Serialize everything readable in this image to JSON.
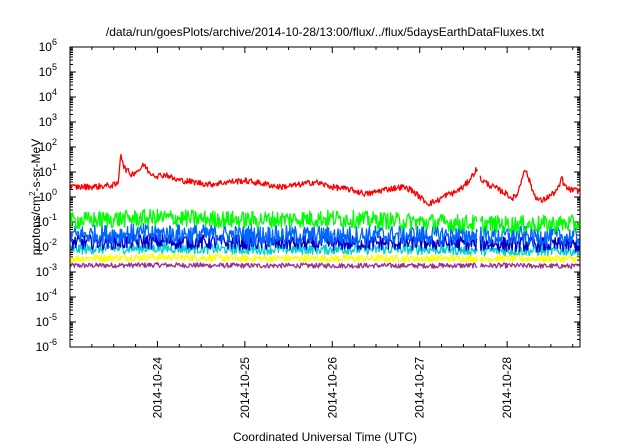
{
  "chart_data": {
    "type": "line",
    "title": "/data/run/goesPlots/archive/2014-10-28/13:00/flux/../flux/5daysEarthDataFluxes.txt",
    "xlabel": "Coordinated Universal Time (UTC)",
    "ylabel": {
      "base": "protons/cm",
      "sup": "2",
      "rest": "-s-sr-MeV"
    },
    "x_range": [
      "2014-10-23 00:00",
      "2014-10-28 14:00"
    ],
    "y_scale": "log",
    "ylim": [
      1e-06,
      1000000.0
    ],
    "grid": false,
    "legend": "none",
    "y_ticks": [
      {
        "v": -6,
        "base": "10",
        "exp": "-6"
      },
      {
        "v": -5,
        "base": "10",
        "exp": "-5"
      },
      {
        "v": -4,
        "base": "10",
        "exp": "-4"
      },
      {
        "v": -3,
        "base": "10",
        "exp": "-3"
      },
      {
        "v": -2,
        "base": "10",
        "exp": "-2"
      },
      {
        "v": -1,
        "base": "10",
        "exp": "-1"
      },
      {
        "v": 0,
        "base": "10",
        "exp": "0"
      },
      {
        "v": 1,
        "base": "10",
        "exp": "1"
      },
      {
        "v": 2,
        "base": "10",
        "exp": "2"
      },
      {
        "v": 3,
        "base": "10",
        "exp": "3"
      },
      {
        "v": 4,
        "base": "10",
        "exp": "4"
      },
      {
        "v": 5,
        "base": "10",
        "exp": "5"
      },
      {
        "v": 6,
        "base": "10",
        "exp": "6"
      }
    ],
    "x_ticks": [
      {
        "t": 1,
        "label": "2014-10-24"
      },
      {
        "t": 2,
        "label": "2014-10-25"
      },
      {
        "t": 3,
        "label": "2014-10-26"
      },
      {
        "t": 4,
        "label": "2014-10-27"
      },
      {
        "t": 5,
        "label": "2014-10-28"
      }
    ],
    "data_gap_days": [
      4.66,
      4.69
    ],
    "series": [
      {
        "color": "#ff0000",
        "noise": 0.12,
        "points": [
          [
            0.0,
            2.5
          ],
          [
            0.3,
            2.6
          ],
          [
            0.5,
            3.0
          ],
          [
            0.55,
            3.2
          ],
          [
            0.58,
            60
          ],
          [
            0.62,
            15
          ],
          [
            0.7,
            8
          ],
          [
            0.8,
            13
          ],
          [
            0.85,
            20
          ],
          [
            0.9,
            10
          ],
          [
            1.0,
            7
          ],
          [
            1.1,
            8
          ],
          [
            1.2,
            5
          ],
          [
            1.4,
            4
          ],
          [
            1.6,
            3.2
          ],
          [
            1.8,
            4
          ],
          [
            2.0,
            4.5
          ],
          [
            2.2,
            3.5
          ],
          [
            2.4,
            2.5
          ],
          [
            2.6,
            3
          ],
          [
            2.8,
            4
          ],
          [
            3.0,
            2.5
          ],
          [
            3.2,
            2
          ],
          [
            3.4,
            1.3
          ],
          [
            3.6,
            2
          ],
          [
            3.8,
            2.5
          ],
          [
            3.9,
            2
          ],
          [
            4.0,
            1
          ],
          [
            4.1,
            0.55
          ],
          [
            4.2,
            0.7
          ],
          [
            4.3,
            1.2
          ],
          [
            4.4,
            1.5
          ],
          [
            4.45,
            2
          ],
          [
            4.5,
            2.5
          ],
          [
            4.55,
            4
          ],
          [
            4.6,
            7
          ],
          [
            4.65,
            13
          ],
          [
            4.7,
            5
          ],
          [
            4.8,
            3
          ],
          [
            4.9,
            2
          ],
          [
            5.0,
            1.3
          ],
          [
            5.05,
            0.9
          ],
          [
            5.1,
            1
          ],
          [
            5.15,
            3
          ],
          [
            5.2,
            15
          ],
          [
            5.25,
            5
          ],
          [
            5.3,
            1.5
          ],
          [
            5.35,
            0.8
          ],
          [
            5.4,
            0.7
          ],
          [
            5.5,
            1.2
          ],
          [
            5.55,
            1.6
          ],
          [
            5.6,
            2.5
          ],
          [
            5.62,
            7
          ],
          [
            5.65,
            3
          ],
          [
            5.7,
            2
          ],
          [
            5.8,
            1.8
          ]
        ]
      },
      {
        "color": "#00ff00",
        "noise": 0.35,
        "points": [
          [
            0.0,
            0.11
          ],
          [
            1.0,
            0.15
          ],
          [
            2.0,
            0.12
          ],
          [
            3.0,
            0.14
          ],
          [
            4.0,
            0.1
          ],
          [
            5.0,
            0.08
          ],
          [
            5.8,
            0.085
          ]
        ]
      },
      {
        "color": "#0066ff",
        "noise": 0.4,
        "points": [
          [
            0.0,
            0.03
          ],
          [
            1.0,
            0.035
          ],
          [
            2.0,
            0.03
          ],
          [
            3.0,
            0.028
          ],
          [
            4.0,
            0.03
          ],
          [
            5.0,
            0.028
          ],
          [
            5.8,
            0.025
          ]
        ]
      },
      {
        "color": "#0000cc",
        "noise": 0.3,
        "points": [
          [
            0.0,
            0.015
          ],
          [
            1.0,
            0.017
          ],
          [
            2.0,
            0.015
          ],
          [
            3.0,
            0.014
          ],
          [
            4.0,
            0.015
          ],
          [
            5.0,
            0.013
          ],
          [
            5.8,
            0.012
          ]
        ]
      },
      {
        "color": "#00d0d0",
        "noise": 0.2,
        "points": [
          [
            0.0,
            0.008
          ],
          [
            1.0,
            0.009
          ],
          [
            2.0,
            0.008
          ],
          [
            3.0,
            0.008
          ],
          [
            4.0,
            0.008
          ],
          [
            5.0,
            0.007
          ],
          [
            5.8,
            0.007
          ]
        ]
      },
      {
        "color": "#ffff00",
        "noise": 0.15,
        "points": [
          [
            0.0,
            0.0035
          ],
          [
            1.0,
            0.004
          ],
          [
            2.0,
            0.0035
          ],
          [
            3.0,
            0.0035
          ],
          [
            4.0,
            0.0035
          ],
          [
            5.0,
            0.0035
          ],
          [
            5.8,
            0.0033
          ]
        ]
      },
      {
        "color": "#993388",
        "noise": 0.1,
        "points": [
          [
            0.0,
            0.0018
          ],
          [
            1.0,
            0.0019
          ],
          [
            2.0,
            0.0018
          ],
          [
            3.0,
            0.0018
          ],
          [
            4.0,
            0.0018
          ],
          [
            5.0,
            0.0018
          ],
          [
            5.8,
            0.0017
          ]
        ]
      }
    ]
  }
}
